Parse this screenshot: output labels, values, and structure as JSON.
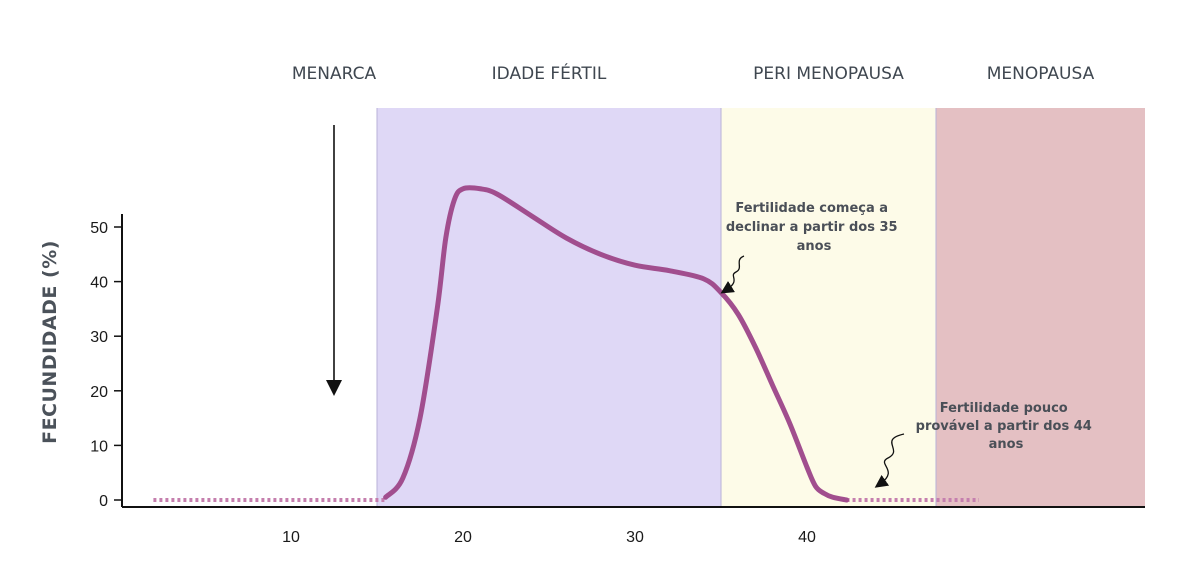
{
  "chart_data": {
    "type": "line",
    "title": "",
    "xlabel": "",
    "ylabel": "FECUNDIDADE (%)",
    "xlim": [
      0,
      50
    ],
    "ylim": [
      0,
      57
    ],
    "x_ticks": [
      10,
      20,
      30,
      40
    ],
    "y_ticks": [
      0,
      10,
      20,
      30,
      40,
      50
    ],
    "grid": false,
    "phases": [
      {
        "label": "MENARCA",
        "start": 0,
        "end": 15,
        "color": ""
      },
      {
        "label": "IDADE FÉRTIL",
        "start": 15,
        "end": 35,
        "color": "#dfd8f6"
      },
      {
        "label": "PERI MENOPAUSA",
        "start": 35,
        "end": 47.5,
        "color": "#fdfbe8"
      },
      {
        "label": "MENOPAUSA",
        "start": 47.5,
        "end": 60,
        "color": "#e4c0c3"
      }
    ],
    "menarca_arrow_x": 12.5,
    "series": [
      {
        "name": "",
        "color": "#a14e8e",
        "x": [
          15.5,
          16.5,
          17.5,
          18.5,
          19.0,
          19.5,
          20.0,
          21.0,
          22.0,
          24.0,
          26.0,
          28.0,
          30.0,
          32.0,
          34.0,
          35.0,
          36.0,
          37.0,
          38.0,
          39.0,
          40.0,
          40.5,
          41.0,
          41.5,
          42.3
        ],
        "y": [
          0.5,
          4,
          15,
          35,
          48,
          55,
          57,
          57,
          56,
          52,
          48,
          45,
          43,
          42,
          40.5,
          38,
          34,
          28,
          21,
          14,
          6,
          2.5,
          1.2,
          0.5,
          0
        ],
        "dotted_segments": [
          [
            2,
            15.5
          ],
          [
            42.3,
            50
          ]
        ]
      }
    ],
    "annotations": [
      {
        "id": "decline-35",
        "lines": [
          "Fertilidade começa a",
          "declinar a partir dos 35",
          "anos"
        ]
      },
      {
        "id": "unlikely-44",
        "lines": [
          "Fertilidade pouco",
          "provável a partir dos 44",
          "anos"
        ]
      }
    ]
  }
}
